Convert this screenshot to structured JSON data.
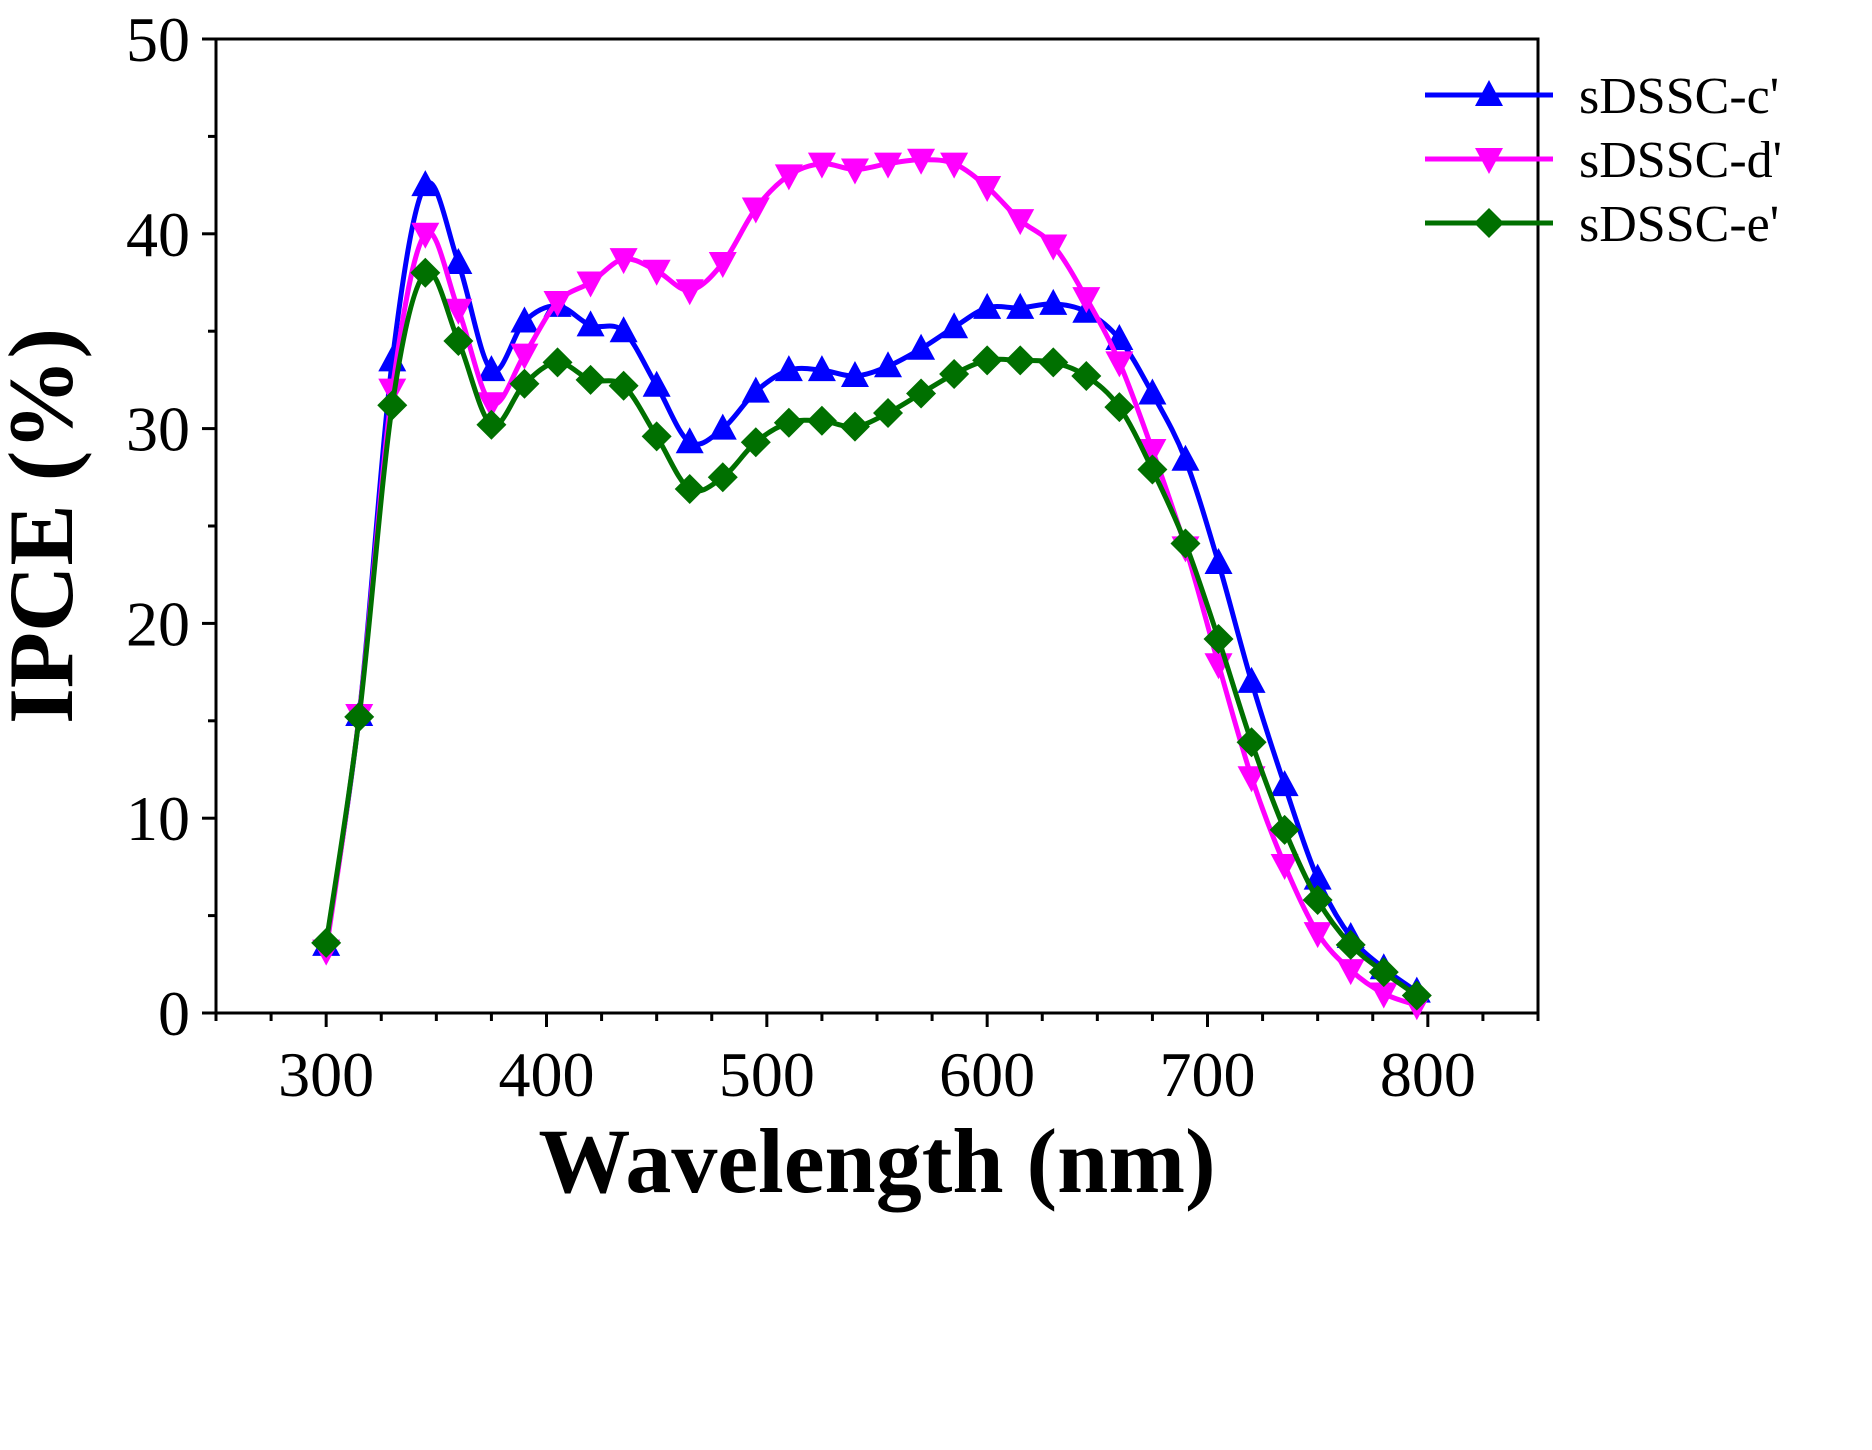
{
  "chart_data": {
    "type": "line",
    "title": "",
    "xlabel": "Wavelength (nm)",
    "ylabel": "IPCE (%)",
    "xlim": [
      250,
      850
    ],
    "ylim": [
      0,
      50
    ],
    "xticks": [
      300,
      400,
      500,
      600,
      700,
      800
    ],
    "yticks": [
      0,
      10,
      20,
      30,
      40,
      50
    ],
    "xtick_labels": [
      "300",
      "400",
      "500",
      "600",
      "700",
      "800"
    ],
    "ytick_labels": [
      "0",
      "10",
      "20",
      "30",
      "40",
      "50"
    ],
    "legend_position": "top-right",
    "x": [
      300,
      315,
      330,
      345,
      360,
      375,
      390,
      405,
      420,
      435,
      450,
      465,
      480,
      495,
      510,
      525,
      540,
      555,
      570,
      585,
      600,
      615,
      630,
      645,
      660,
      675,
      690,
      705,
      720,
      735,
      750,
      765,
      780,
      795
    ],
    "series": [
      {
        "name": "sDSSC-c'",
        "color": "#0000ff",
        "marker": "triangle-up",
        "values": [
          3.5,
          15.3,
          33.5,
          42.5,
          38.5,
          33.0,
          35.5,
          36.3,
          35.3,
          35.0,
          32.2,
          29.3,
          30.0,
          31.9,
          33.0,
          33.0,
          32.7,
          33.2,
          34.1,
          35.2,
          36.2,
          36.2,
          36.4,
          36.0,
          34.6,
          31.8,
          28.4,
          23.1,
          17.0,
          11.7,
          6.9,
          3.9,
          2.3,
          1.1
        ]
      },
      {
        "name": "sDSSC-d'",
        "color": "#ff00ff",
        "marker": "triangle-down",
        "values": [
          3.2,
          15.3,
          32.0,
          40.0,
          36.1,
          31.3,
          33.8,
          36.5,
          37.5,
          38.7,
          38.1,
          37.1,
          38.5,
          41.3,
          43.0,
          43.6,
          43.3,
          43.6,
          43.8,
          43.6,
          42.4,
          40.7,
          39.4,
          36.7,
          33.4,
          28.9,
          23.9,
          17.9,
          12.1,
          7.6,
          4.1,
          2.2,
          1.0,
          0.4
        ]
      },
      {
        "name": "sDSSC-e'",
        "color": "#007000",
        "marker": "diamond",
        "values": [
          3.6,
          15.2,
          31.2,
          38.0,
          34.5,
          30.2,
          32.3,
          33.4,
          32.5,
          32.2,
          29.6,
          26.9,
          27.5,
          29.3,
          30.3,
          30.4,
          30.1,
          30.8,
          31.8,
          32.8,
          33.5,
          33.5,
          33.4,
          32.7,
          31.1,
          27.9,
          24.1,
          19.2,
          13.9,
          9.4,
          5.8,
          3.5,
          2.1,
          0.9
        ]
      }
    ]
  }
}
